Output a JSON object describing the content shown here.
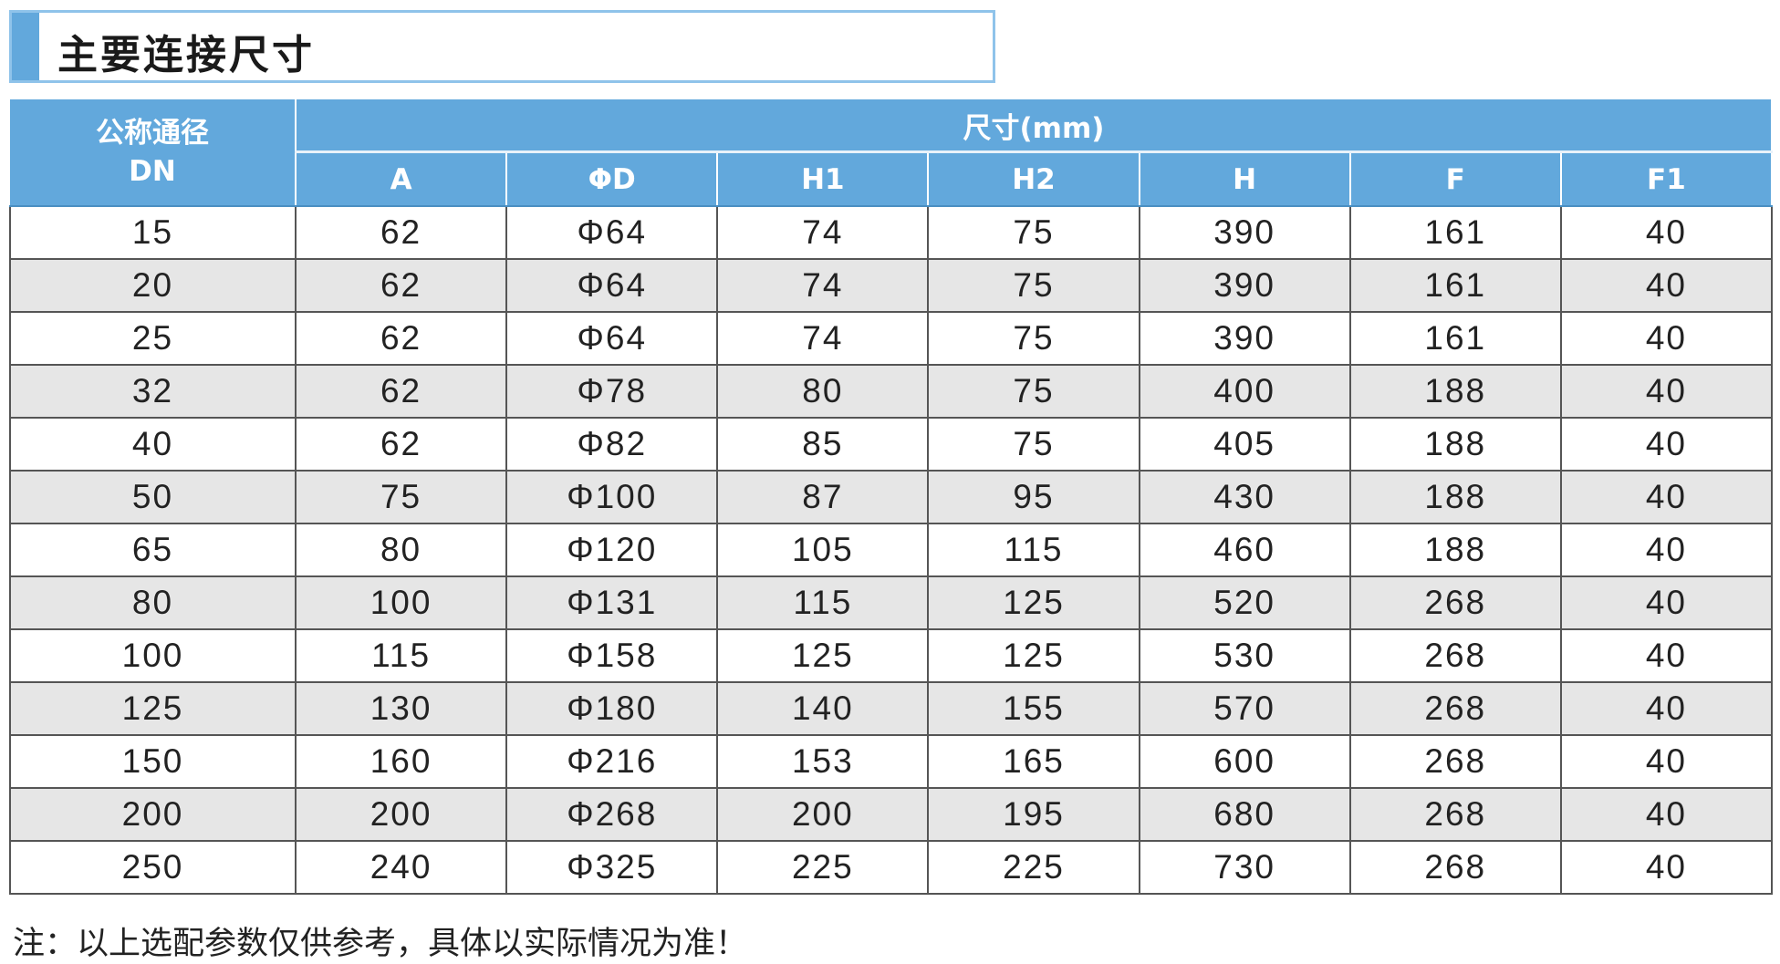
{
  "title": "主要连接尺寸",
  "header": {
    "dn_line1": "公称通径",
    "dn_line2": "DN",
    "dimensions_group": "尺寸(mm)",
    "columns": [
      "A",
      "ΦD",
      "H1",
      "H2",
      "H",
      "F",
      "F1"
    ]
  },
  "rows": [
    [
      "15",
      "62",
      "Φ64",
      "74",
      "75",
      "390",
      "161",
      "40"
    ],
    [
      "20",
      "62",
      "Φ64",
      "74",
      "75",
      "390",
      "161",
      "40"
    ],
    [
      "25",
      "62",
      "Φ64",
      "74",
      "75",
      "390",
      "161",
      "40"
    ],
    [
      "32",
      "62",
      "Φ78",
      "80",
      "75",
      "400",
      "188",
      "40"
    ],
    [
      "40",
      "62",
      "Φ82",
      "85",
      "75",
      "405",
      "188",
      "40"
    ],
    [
      "50",
      "75",
      "Φ100",
      "87",
      "95",
      "430",
      "188",
      "40"
    ],
    [
      "65",
      "80",
      "Φ120",
      "105",
      "115",
      "460",
      "188",
      "40"
    ],
    [
      "80",
      "100",
      "Φ131",
      "115",
      "125",
      "520",
      "268",
      "40"
    ],
    [
      "100",
      "115",
      "Φ158",
      "125",
      "125",
      "530",
      "268",
      "40"
    ],
    [
      "125",
      "130",
      "Φ180",
      "140",
      "155",
      "570",
      "268",
      "40"
    ],
    [
      "150",
      "160",
      "Φ216",
      "153",
      "165",
      "600",
      "268",
      "40"
    ],
    [
      "200",
      "200",
      "Φ268",
      "200",
      "195",
      "680",
      "268",
      "40"
    ],
    [
      "250",
      "240",
      "Φ325",
      "225",
      "225",
      "730",
      "268",
      "40"
    ]
  ],
  "note": "注：以上选配参数仅供参考，具体以实际情况为准！",
  "colors": {
    "header_bg": "#62a8dc",
    "alt_row": "#e6e6e6"
  }
}
